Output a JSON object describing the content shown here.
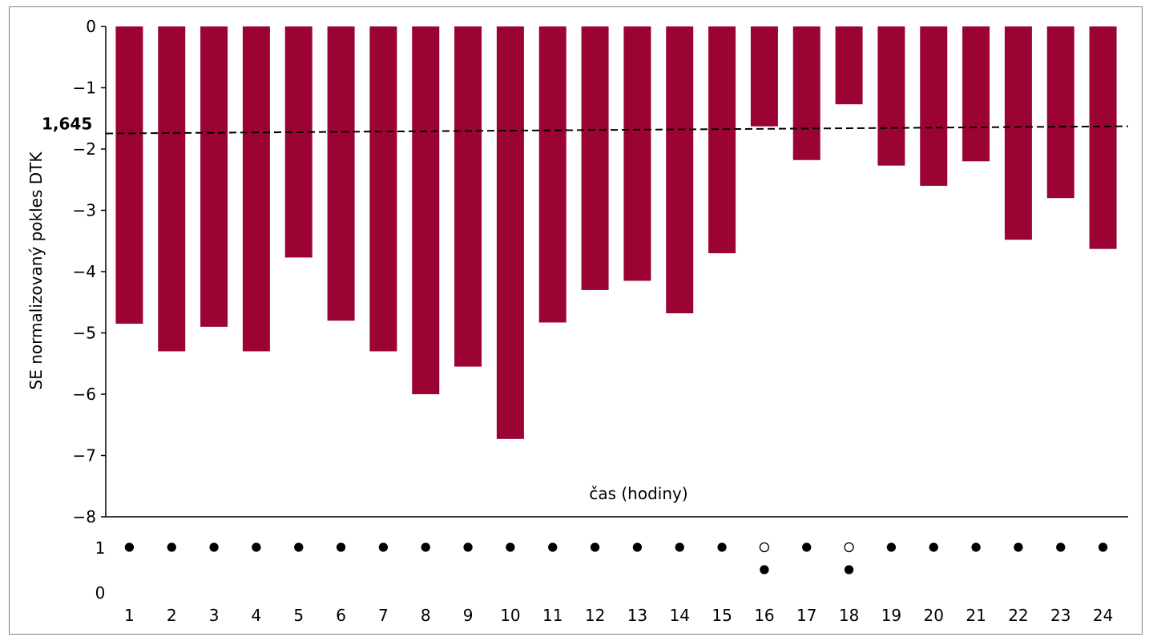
{
  "chart_data": {
    "type": "bar",
    "categories": [
      "1",
      "2",
      "3",
      "4",
      "5",
      "6",
      "7",
      "8",
      "9",
      "10",
      "11",
      "12",
      "13",
      "14",
      "15",
      "16",
      "17",
      "18",
      "19",
      "20",
      "21",
      "22",
      "23",
      "24"
    ],
    "values": [
      -4.85,
      -5.3,
      -4.9,
      -5.3,
      -3.77,
      -4.8,
      -5.3,
      -6.0,
      -5.55,
      -6.73,
      -4.83,
      -4.3,
      -4.15,
      -4.68,
      -3.7,
      -1.63,
      -2.18,
      -1.27,
      -2.27,
      -2.6,
      -2.2,
      -3.48,
      -2.8,
      -3.63
    ],
    "ylabel": "SE normalizovaný pokles DTK",
    "xlabel": "čas (hodiny)",
    "ylim": [
      -8,
      0
    ],
    "yticks": [
      "0",
      "−1",
      "−2",
      "−3",
      "−4",
      "−5",
      "−6",
      "−7",
      "−8"
    ],
    "ytick_values": [
      0,
      -1,
      -2,
      -3,
      -4,
      -5,
      -6,
      -7,
      -8
    ],
    "bar_color": "#9b0432",
    "reference_line": {
      "label": "1,645",
      "value": -1.72,
      "style": "dashed"
    },
    "indicator": {
      "rows": [
        "1",
        "0"
      ],
      "row_values": [
        1,
        0
      ],
      "points": [
        {
          "x": "1",
          "row": 1,
          "filled": true
        },
        {
          "x": "2",
          "row": 1,
          "filled": true
        },
        {
          "x": "3",
          "row": 1,
          "filled": true
        },
        {
          "x": "4",
          "row": 1,
          "filled": true
        },
        {
          "x": "5",
          "row": 1,
          "filled": true
        },
        {
          "x": "6",
          "row": 1,
          "filled": true
        },
        {
          "x": "7",
          "row": 1,
          "filled": true
        },
        {
          "x": "8",
          "row": 1,
          "filled": true
        },
        {
          "x": "9",
          "row": 1,
          "filled": true
        },
        {
          "x": "10",
          "row": 1,
          "filled": true
        },
        {
          "x": "11",
          "row": 1,
          "filled": true
        },
        {
          "x": "12",
          "row": 1,
          "filled": true
        },
        {
          "x": "13",
          "row": 1,
          "filled": true
        },
        {
          "x": "14",
          "row": 1,
          "filled": true
        },
        {
          "x": "15",
          "row": 1,
          "filled": true
        },
        {
          "x": "16",
          "row": 1,
          "filled": false
        },
        {
          "x": "16",
          "row": 0.5,
          "filled": true
        },
        {
          "x": "17",
          "row": 1,
          "filled": true
        },
        {
          "x": "18",
          "row": 1,
          "filled": false
        },
        {
          "x": "18",
          "row": 0.5,
          "filled": true
        },
        {
          "x": "19",
          "row": 1,
          "filled": true
        },
        {
          "x": "20",
          "row": 1,
          "filled": true
        },
        {
          "x": "21",
          "row": 1,
          "filled": true
        },
        {
          "x": "22",
          "row": 1,
          "filled": true
        },
        {
          "x": "23",
          "row": 1,
          "filled": true
        },
        {
          "x": "24",
          "row": 1,
          "filled": true
        }
      ]
    }
  }
}
